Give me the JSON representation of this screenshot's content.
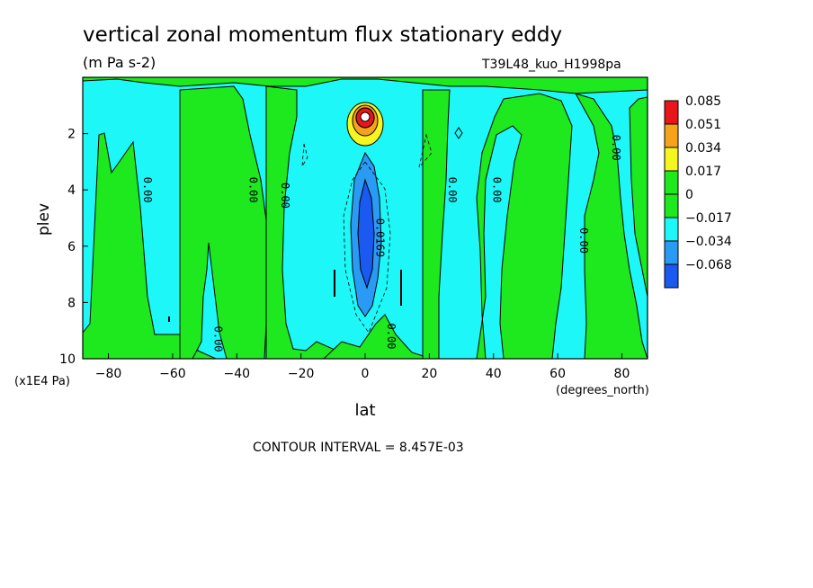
{
  "chart_data": {
    "type": "heatmap",
    "title": "vertical zonal momentum flux stationary eddy",
    "units": "(m Pa s-2)",
    "dataset": "T39L48_kuo_H1998pa",
    "xlabel": "lat",
    "xunits": "(degrees_north)",
    "ylabel": "plev",
    "yunits": "(x1E4 Pa)",
    "xlim": [
      -88,
      88
    ],
    "ylim": [
      0,
      10
    ],
    "y_inverted": true,
    "xticks": [
      -80,
      -60,
      -40,
      -20,
      0,
      20,
      40,
      60,
      80
    ],
    "xtick_labels": [
      "−80",
      "−60",
      "−40",
      "−20",
      "0",
      "20",
      "40",
      "60",
      "80"
    ],
    "yticks": [
      2,
      4,
      6,
      8,
      10
    ],
    "ytick_labels": [
      "2",
      "4",
      "6",
      "8",
      "10"
    ],
    "colorbar": {
      "levels": [
        "0.085",
        "0.051",
        "0.034",
        "0.017",
        "0",
        "−0.017",
        "−0.034",
        "−0.068"
      ],
      "colors": [
        "#e8161b",
        "#f7a21b",
        "#f5f51f",
        "#1ee81e",
        "#1ee81e",
        "#1ef7f7",
        "#2a9bf5",
        "#1a5af0"
      ]
    },
    "contour_labels": [
      {
        "text": "0.00",
        "lat": -69,
        "plev": 4.0,
        "rot": 90
      },
      {
        "text": "0.00",
        "lat": -36,
        "plev": 4.0,
        "rot": 90
      },
      {
        "text": "0.00",
        "lat": -26,
        "plev": 4.2,
        "rot": 90
      },
      {
        "text": "0.0169",
        "lat": 3.5,
        "plev": 5.7,
        "rot": 90
      },
      {
        "text": "0.00",
        "lat": 26,
        "plev": 4.0,
        "rot": 90
      },
      {
        "text": "0.00",
        "lat": 40,
        "plev": 4.0,
        "rot": 90
      },
      {
        "text": "0.00",
        "lat": 67,
        "plev": 5.8,
        "rot": 90
      },
      {
        "text": "0.00",
        "lat": 77,
        "plev": 2.5,
        "rot": 90
      },
      {
        "text": "0.00",
        "lat": -47,
        "plev": 9.3,
        "rot": 90
      },
      {
        "text": "0.00",
        "lat": 7,
        "plev": 9.2,
        "rot": 90
      }
    ],
    "contour_interval_text": "CONTOUR INTERVAL = 8.457E-03"
  }
}
